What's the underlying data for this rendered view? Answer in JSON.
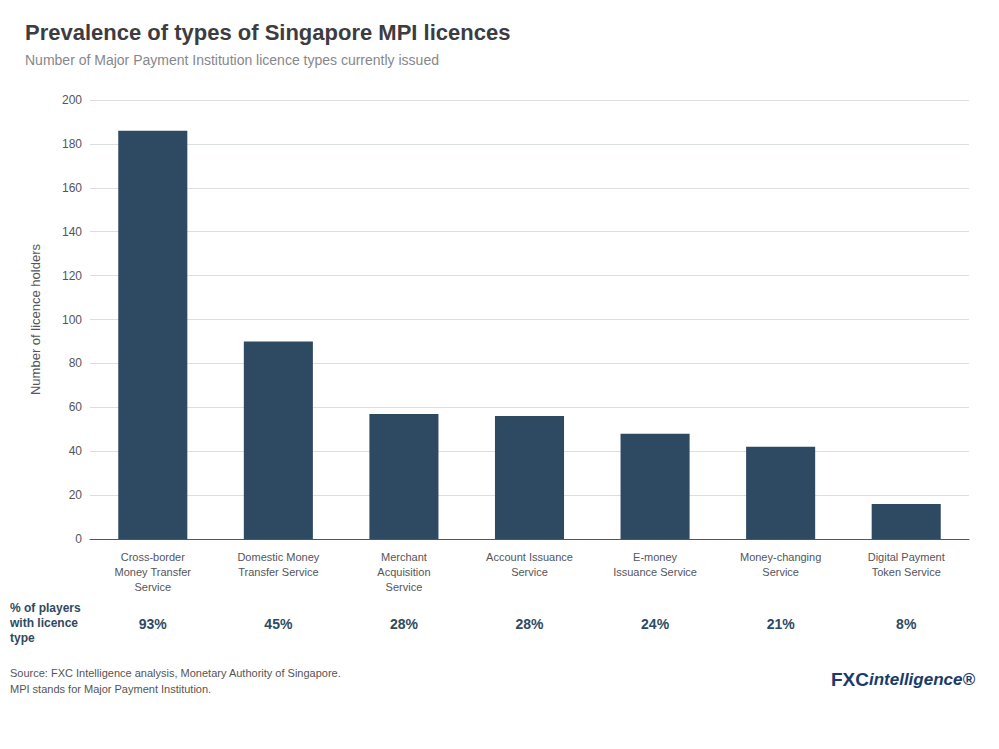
{
  "chart_data": {
    "type": "bar",
    "title": "Prevalence of types of Singapore MPI licences",
    "subtitle": "Number of Major Payment Institution licence types currently issued",
    "categories": [
      "Cross-border\nMoney Transfer\nService",
      "Domestic Money\nTransfer Service",
      "Merchant\nAcquisition\nService",
      "Account Issuance\nService",
      "E-money\nIssuance Service",
      "Money-changing\nService",
      "Digital Payment\nToken Service"
    ],
    "values": [
      186,
      90,
      57,
      56,
      48,
      42,
      16
    ],
    "color": "#2e4a62",
    "ylabel": "Number of licence holders",
    "ylim": [
      0,
      200
    ],
    "yticks": [
      0,
      20,
      40,
      60,
      80,
      100,
      120,
      140,
      160,
      180,
      200
    ],
    "grid": true,
    "percentages_label": "% of players\nwith licence\ntype",
    "percentages": [
      {
        "value": 93,
        "label": "93%"
      },
      {
        "value": 45,
        "label": "45%"
      },
      {
        "value": 28,
        "label": "28%"
      },
      {
        "value": 28,
        "label": "28%"
      },
      {
        "value": 24,
        "label": "24%"
      },
      {
        "value": 21,
        "label": "21%"
      },
      {
        "value": 8,
        "label": "8%"
      }
    ],
    "source": "Source: FXC Intelligence analysis, Monetary Authority of Singapore.\nMPI stands for Major Payment Institution.",
    "logo": [
      "FXC",
      "intelligence®"
    ]
  }
}
